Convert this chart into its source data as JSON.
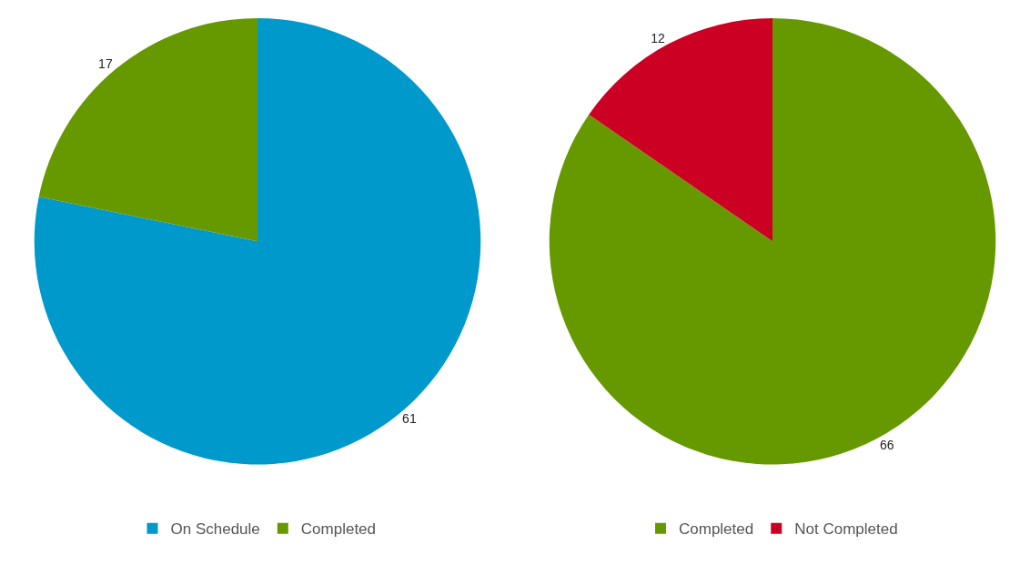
{
  "chart_data": [
    {
      "type": "pie",
      "categories": [
        "On Schedule",
        "Completed"
      ],
      "values": [
        61,
        17
      ],
      "colors": [
        "#0099cc",
        "#669900"
      ],
      "data_labels": true,
      "legend": "bottom"
    },
    {
      "type": "pie",
      "categories": [
        "Completed",
        "Not Completed"
      ],
      "values": [
        66,
        12
      ],
      "colors": [
        "#669900",
        "#cc0022"
      ],
      "data_labels": true,
      "legend": "bottom"
    }
  ]
}
